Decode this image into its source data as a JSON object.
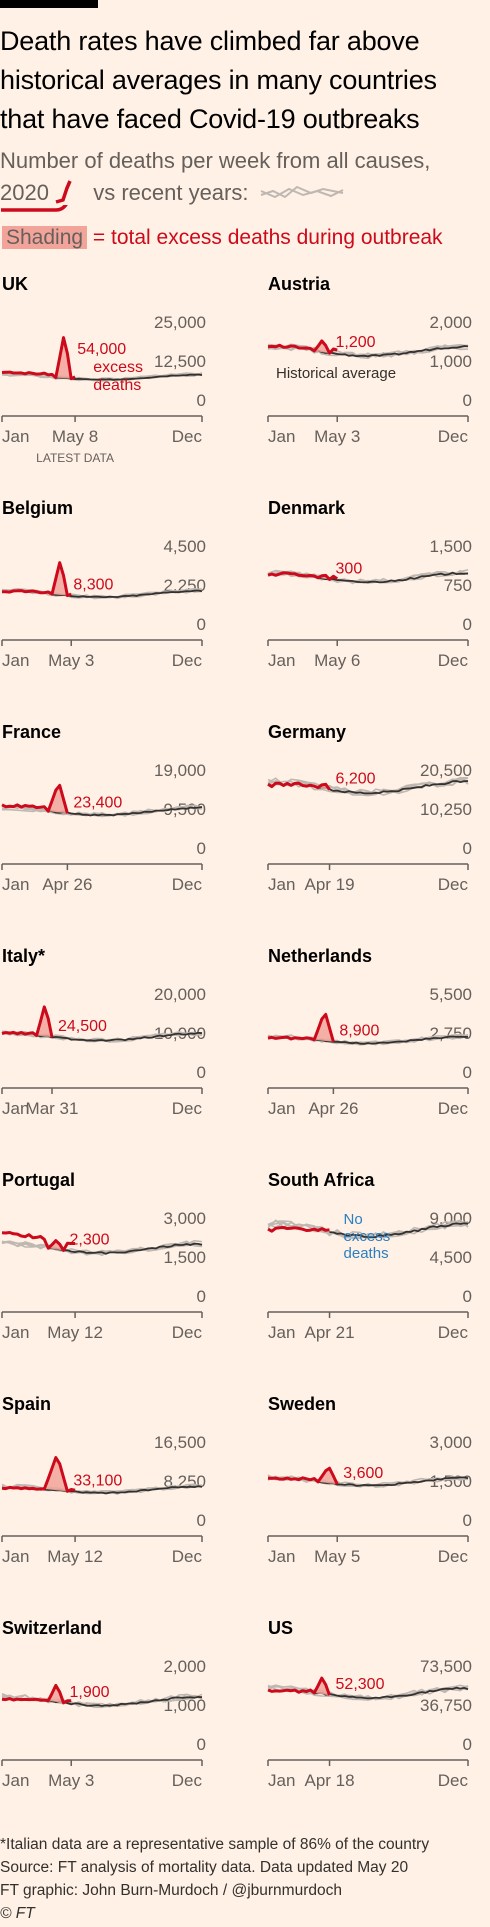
{
  "title": "Death rates have climbed far above historical averages in many countries that have faced Covid-19 outbreaks",
  "subtitle": "Number of deaths per week from all causes,",
  "legend": {
    "current_label": "2020",
    "vs_text": "vs recent years:",
    "shading_label": "Shading",
    "shading_text": "= total excess deaths during outbreak"
  },
  "colors": {
    "background": "#fff1e5",
    "current": "#cc0a1b",
    "historical_avg": "#33302e",
    "recent_years": "#bfb8b2",
    "shading": "#f2a49b",
    "no_excess": "#2a7fc2",
    "axis": "#66605c"
  },
  "footer": {
    "note": "*Italian data are a representative sample of 86% of the country",
    "source": "Source: FT analysis of mortality data. Data updated May 20",
    "graphic": "FT graphic: John Burn-Murdoch / @jburnmurdoch",
    "copyright": "© FT"
  },
  "chart_data": [
    {
      "type": "line",
      "country": "UK",
      "ylim": [
        0,
        25000
      ],
      "yticks": [
        "25,000",
        "12,500",
        "0"
      ],
      "latest_label": "May 8",
      "latest_week": 19,
      "latest_note": "LATEST DATA",
      "excess_label": "54,000",
      "excess_extra": [
        "excess",
        "deaths"
      ],
      "avg_note": "",
      "no_excess_lines": [],
      "peak_weeks": [
        14,
        18
      ],
      "peak_value": 24500,
      "baseline": 10500,
      "start_value": 12000
    },
    {
      "type": "line",
      "country": "Austria",
      "ylim": [
        0,
        2000
      ],
      "yticks": [
        "2,000",
        "1,000",
        "0"
      ],
      "latest_label": "May 3",
      "latest_week": 18,
      "latest_note": "",
      "excess_label": "1,200",
      "excess_extra": [],
      "avg_note": "Historical average",
      "no_excess_lines": [],
      "peak_weeks": [
        12,
        16
      ],
      "peak_value": 1800,
      "baseline": 1500,
      "start_value": 1650
    },
    {
      "type": "line",
      "country": "Belgium",
      "ylim": [
        0,
        4500
      ],
      "yticks": [
        "4,500",
        "2,250",
        "0"
      ],
      "latest_label": "May 3",
      "latest_week": 18,
      "latest_note": "",
      "excess_label": "8,300",
      "excess_extra": [],
      "avg_note": "",
      "no_excess_lines": [],
      "peak_weeks": [
        13,
        17
      ],
      "peak_value": 4300,
      "baseline": 2300,
      "start_value": 2450
    },
    {
      "type": "line",
      "country": "Denmark",
      "ylim": [
        0,
        1500
      ],
      "yticks": [
        "1,500",
        "750",
        "0"
      ],
      "latest_label": "May 6",
      "latest_week": 18,
      "latest_note": "",
      "excess_label": "300",
      "excess_extra": [],
      "avg_note": "",
      "no_excess_lines": [],
      "peak_weeks": [
        13,
        16
      ],
      "peak_value": 1150,
      "baseline": 1080,
      "start_value": 1150
    },
    {
      "type": "line",
      "country": "France",
      "ylim": [
        0,
        19000
      ],
      "yticks": [
        "19,000",
        "9,500",
        "0"
      ],
      "latest_label": "Apr 26",
      "latest_week": 17,
      "latest_note": "",
      "excess_label": "23,400",
      "excess_extra": [],
      "avg_note": "",
      "no_excess_lines": [],
      "peak_weeks": [
        12,
        17
      ],
      "peak_value": 18500,
      "baseline": 11300,
      "start_value": 12800
    },
    {
      "type": "line",
      "country": "Germany",
      "ylim": [
        0,
        20500
      ],
      "yticks": [
        "20,500",
        "10,250",
        "0"
      ],
      "latest_label": "Apr 19",
      "latest_week": 16,
      "latest_note": "",
      "excess_label": "6,200",
      "excess_extra": [],
      "avg_note": "",
      "no_excess_lines": [],
      "peak_weeks": [
        13,
        16
      ],
      "peak_value": 19800,
      "baseline": 18500,
      "start_value": 19200
    },
    {
      "type": "line",
      "country": "Italy*",
      "ylim": [
        0,
        20000
      ],
      "yticks": [
        "20,000",
        "10,000",
        "0"
      ],
      "latest_label": "Mar 31",
      "latest_week": 13,
      "latest_note": "",
      "excess_label": "24,500",
      "excess_extra": [],
      "avg_note": "",
      "no_excess_lines": [],
      "peak_weeks": [
        9,
        13
      ],
      "peak_value": 20000,
      "baseline": 11500,
      "start_value": 12500
    },
    {
      "type": "line",
      "country": "Netherlands",
      "ylim": [
        0,
        5500
      ],
      "yticks": [
        "5,500",
        "2,750",
        "0"
      ],
      "latest_label": "Apr 26",
      "latest_week": 17,
      "latest_note": "",
      "excess_label": "8,900",
      "excess_extra": [],
      "avg_note": "",
      "no_excess_lines": [],
      "peak_weeks": [
        12,
        17
      ],
      "peak_value": 5000,
      "baseline": 2950,
      "start_value": 3100
    },
    {
      "type": "line",
      "country": "Portugal",
      "ylim": [
        0,
        3000
      ],
      "yticks": [
        "3,000",
        "1,500",
        "0"
      ],
      "latest_label": "May 12",
      "latest_week": 19,
      "latest_note": "",
      "excess_label": "2,300",
      "excess_extra": [],
      "avg_note": "",
      "no_excess_lines": [],
      "peak_weeks": [
        12,
        16
      ],
      "peak_value": 2550,
      "baseline": 2200,
      "start_value": 2800
    },
    {
      "type": "line",
      "country": "South Africa",
      "ylim": [
        0,
        9000
      ],
      "yticks": [
        "9,000",
        "4,500",
        "0"
      ],
      "latest_label": "Apr 21",
      "latest_week": 16,
      "latest_note": "",
      "excess_label": "",
      "excess_extra": [],
      "avg_note": "",
      "no_excess_lines": [
        "No",
        "excess",
        "deaths"
      ],
      "peak_weeks": [],
      "peak_value": 0,
      "baseline": 8700,
      "start_value": 8800
    },
    {
      "type": "line",
      "country": "Spain",
      "ylim": [
        0,
        16500
      ],
      "yticks": [
        "16,500",
        "8,250",
        "0"
      ],
      "latest_label": "May 12",
      "latest_week": 19,
      "latest_note": "",
      "excess_label": "33,100",
      "excess_extra": [],
      "avg_note": "",
      "no_excess_lines": [],
      "peak_weeks": [
        11,
        17
      ],
      "peak_value": 16000,
      "baseline": 8500,
      "start_value": 8800
    },
    {
      "type": "line",
      "country": "Sweden",
      "ylim": [
        0,
        3000
      ],
      "yticks": [
        "3,000",
        "1,500",
        "0"
      ],
      "latest_label": "May 5",
      "latest_week": 18,
      "latest_note": "",
      "excess_label": "3,600",
      "excess_extra": [],
      "avg_note": "",
      "no_excess_lines": [],
      "peak_weeks": [
        13,
        18
      ],
      "peak_value": 2450,
      "baseline": 1850,
      "start_value": 2000
    },
    {
      "type": "line",
      "country": "Switzerland",
      "ylim": [
        0,
        2000
      ],
      "yticks": [
        "2,000",
        "1,000",
        "0"
      ],
      "latest_label": "May 3",
      "latest_week": 18,
      "latest_note": "",
      "excess_label": "1,900",
      "excess_extra": [],
      "avg_note": "",
      "no_excess_lines": [],
      "peak_weeks": [
        12,
        16
      ],
      "peak_value": 1800,
      "baseline": 1350,
      "start_value": 1400
    },
    {
      "type": "line",
      "country": "US",
      "ylim": [
        0,
        73500
      ],
      "yticks": [
        "73,500",
        "36,750",
        "0"
      ],
      "latest_label": "Apr 18",
      "latest_week": 16,
      "latest_note": "",
      "excess_label": "52,300",
      "excess_extra": [],
      "avg_note": "",
      "no_excess_lines": [],
      "peak_weeks": [
        12,
        16
      ],
      "peak_value": 73000,
      "baseline": 57000,
      "start_value": 59500
    }
  ],
  "axis_labels": {
    "start": "Jan",
    "end": "Dec"
  }
}
